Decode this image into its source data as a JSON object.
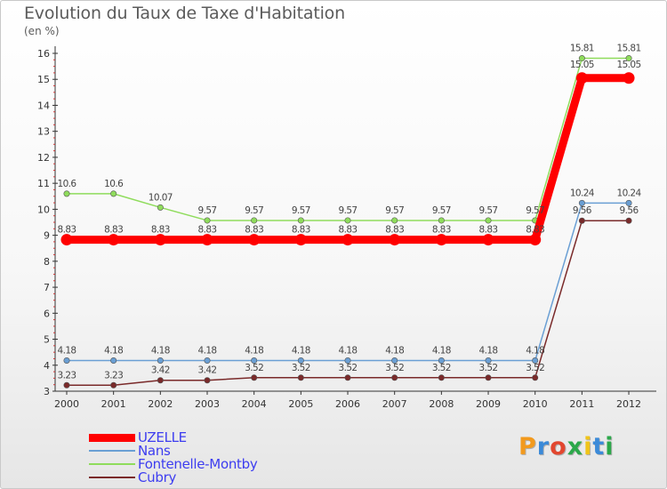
{
  "title": "Evolution du Taux de Taxe d'Habitation",
  "unit_label": "(en %)",
  "logo_text": "Proxiti",
  "logo_colors": [
    "#f29a1e",
    "#3b8ad8",
    "#e2472f",
    "#2ba84a",
    "#f0c419",
    "#3b8ad8",
    "#2ba84a"
  ],
  "chart_data": {
    "type": "line",
    "x": [
      "2000",
      "2001",
      "2002",
      "2003",
      "2004",
      "2005",
      "2006",
      "2007",
      "2008",
      "2009",
      "2010",
      "2011",
      "2012"
    ],
    "ylim": [
      3,
      16
    ],
    "yticks": [
      "3",
      "4",
      "5",
      "6",
      "7",
      "8",
      "9",
      "10",
      "11",
      "12",
      "13",
      "14",
      "15",
      "16"
    ],
    "grid": false,
    "legend_position": "bottom-left",
    "series": [
      {
        "name": "UZELLE",
        "color": "#ff0000",
        "values": [
          8.83,
          8.83,
          8.83,
          8.83,
          8.83,
          8.83,
          8.83,
          8.83,
          8.83,
          8.83,
          8.83,
          15.05,
          15.05
        ],
        "labels": [
          "8.83",
          "8.83",
          "8.83",
          "8.83",
          "8.83",
          "8.83",
          "8.83",
          "8.83",
          "8.83",
          "8.83",
          "8.83",
          "15.05",
          "15.05"
        ]
      },
      {
        "name": "Nans",
        "color": "#6a9fd4",
        "values": [
          4.18,
          4.18,
          4.18,
          4.18,
          4.18,
          4.18,
          4.18,
          4.18,
          4.18,
          4.18,
          4.18,
          10.24,
          10.24
        ],
        "labels": [
          "4.18",
          "4.18",
          "4.18",
          "4.18",
          "4.18",
          "4.18",
          "4.18",
          "4.18",
          "4.18",
          "4.18",
          "4.18",
          "10.24",
          "10.24"
        ]
      },
      {
        "name": "Fontenelle-Montby",
        "color": "#8fdc5c",
        "values": [
          10.6,
          10.6,
          10.07,
          9.57,
          9.57,
          9.57,
          9.57,
          9.57,
          9.57,
          9.57,
          9.57,
          15.81,
          15.81
        ],
        "labels": [
          "10.6",
          "10.6",
          "10.07",
          "9.57",
          "9.57",
          "9.57",
          "9.57",
          "9.57",
          "9.57",
          "9.57",
          "9.57",
          "15.81",
          "15.81"
        ]
      },
      {
        "name": "Cubry",
        "color": "#7a2a2a",
        "values": [
          3.23,
          3.23,
          3.42,
          3.42,
          3.52,
          3.52,
          3.52,
          3.52,
          3.52,
          3.52,
          3.52,
          9.56,
          9.56
        ],
        "labels": [
          "3.23",
          "3.23",
          "3.42",
          "3.42",
          "3.52",
          "3.52",
          "3.52",
          "3.52",
          "3.52",
          "3.52",
          "3.52",
          "9.56",
          "9.56"
        ]
      }
    ]
  }
}
